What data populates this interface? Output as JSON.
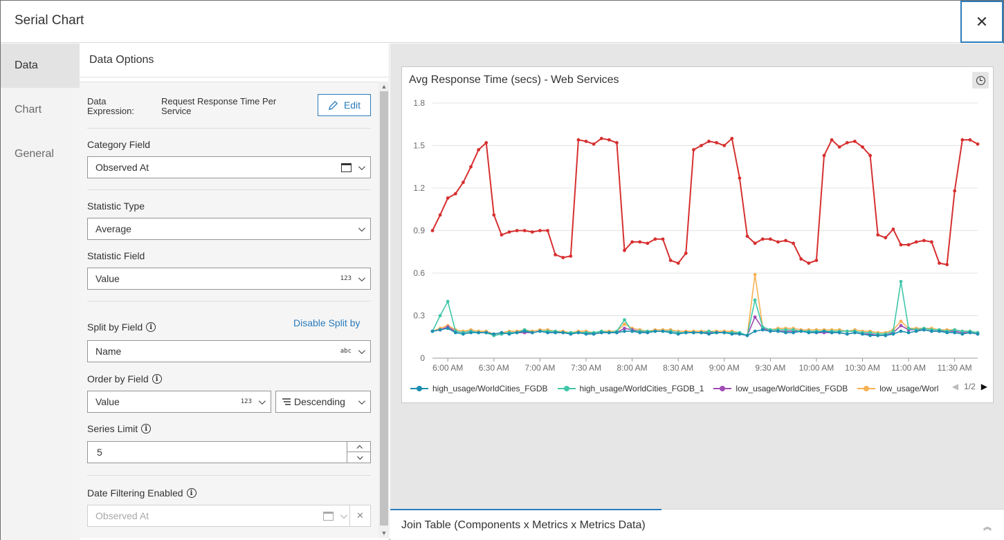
{
  "window": {
    "title": "Serial Chart",
    "close_glyph": "✕"
  },
  "sidetabs": [
    {
      "label": "Data"
    },
    {
      "label": "Chart"
    },
    {
      "label": "General"
    }
  ],
  "panel": {
    "header": "Data Options",
    "data_expression": {
      "label": "Data Expression:",
      "value": "Request Response Time Per Service",
      "edit_label": "Edit"
    },
    "category_field": {
      "label": "Category Field",
      "value": "Observed At"
    },
    "statistic_type": {
      "label": "Statistic Type",
      "value": "Average"
    },
    "statistic_field": {
      "label": "Statistic Field",
      "value": "Value",
      "type_badge": "123"
    },
    "split_by": {
      "label": "Split by Field",
      "disable_label": "Disable Split by",
      "value": "Name",
      "type_badge": "abc"
    },
    "order_by": {
      "label": "Order by Field",
      "value": "Value",
      "type_badge": "123",
      "direction": "Descending"
    },
    "series_limit": {
      "label": "Series Limit",
      "value": "5"
    },
    "date_filtering": {
      "label": "Date Filtering Enabled",
      "placeholder": "Observed At"
    }
  },
  "chart": {
    "title": "Avg Response Time (secs) - Web Services",
    "legend_page": "1/2",
    "legend": [
      {
        "name": "high_usage/WorldCities_FGDB",
        "color": "#1a8fb0"
      },
      {
        "name": "high_usage/WorldCities_FGDB_1",
        "color": "#3fc7a8"
      },
      {
        "name": "low_usage/WorldCities_FGDB",
        "color": "#a04bb5"
      },
      {
        "name": "low_usage/Worl",
        "color": "#f7b153"
      }
    ]
  },
  "chart_data": {
    "type": "line",
    "title": "Avg Response Time (secs) - Web Services",
    "ylim": [
      0,
      1.8
    ],
    "yticks": [
      "0",
      "0.3",
      "0.6",
      "0.9",
      "1.2",
      "1.5",
      "1.8"
    ],
    "xticks": [
      "6:00 AM",
      "6:30 AM",
      "7:00 AM",
      "7:30 AM",
      "8:00 AM",
      "8:30 AM",
      "9:00 AM",
      "9:30 AM",
      "10:00 AM",
      "10:30 AM",
      "11:00 AM",
      "11:30 AM"
    ],
    "grid": true,
    "legend_position": "bottom",
    "x_start_minutes": 350,
    "x_step_minutes": 5,
    "x_end_minutes": 705,
    "series": [
      {
        "name": "red",
        "color": "#d62f2f",
        "values": [
          0.9,
          1.01,
          1.13,
          1.16,
          1.24,
          1.35,
          1.47,
          1.52,
          1.01,
          0.87,
          0.89,
          0.9,
          0.9,
          0.89,
          0.9,
          0.9,
          0.73,
          0.71,
          0.72,
          1.54,
          1.53,
          1.51,
          1.55,
          1.54,
          1.52,
          0.76,
          0.82,
          0.82,
          0.81,
          0.84,
          0.84,
          0.69,
          0.67,
          0.74,
          1.47,
          1.5,
          1.53,
          1.52,
          1.5,
          1.55,
          1.27,
          0.86,
          0.81,
          0.84,
          0.84,
          0.82,
          0.83,
          0.81,
          0.7,
          0.67,
          0.69,
          1.43,
          1.54,
          1.49,
          1.52,
          1.53,
          1.49,
          1.43,
          0.87,
          0.85,
          0.91,
          0.8,
          0.8,
          0.82,
          0.83,
          0.82,
          0.67,
          0.66,
          1.18,
          1.54,
          1.54,
          1.51
        ]
      },
      {
        "name": "high_usage/WorldCities_FGDB",
        "color": "#1a8fb0",
        "values": [
          0.19,
          0.2,
          0.21,
          0.18,
          0.17,
          0.18,
          0.18,
          0.18,
          0.17,
          0.18,
          0.17,
          0.18,
          0.19,
          0.18,
          0.19,
          0.18,
          0.18,
          0.18,
          0.17,
          0.18,
          0.17,
          0.17,
          0.18,
          0.18,
          0.18,
          0.19,
          0.19,
          0.18,
          0.18,
          0.19,
          0.19,
          0.18,
          0.17,
          0.18,
          0.18,
          0.18,
          0.17,
          0.18,
          0.18,
          0.17,
          0.17,
          0.16,
          0.19,
          0.2,
          0.19,
          0.19,
          0.18,
          0.18,
          0.19,
          0.18,
          0.18,
          0.19,
          0.18,
          0.18,
          0.17,
          0.18,
          0.17,
          0.16,
          0.16,
          0.16,
          0.17,
          0.19,
          0.18,
          0.19,
          0.2,
          0.19,
          0.19,
          0.18,
          0.18,
          0.17,
          0.18,
          0.17
        ]
      },
      {
        "name": "high_usage/WorldCities_FGDB_1",
        "color": "#3fc7a8",
        "values": [
          0.19,
          0.3,
          0.4,
          0.19,
          0.18,
          0.19,
          0.18,
          0.18,
          0.16,
          0.17,
          0.18,
          0.18,
          0.2,
          0.18,
          0.19,
          0.19,
          0.19,
          0.18,
          0.18,
          0.18,
          0.18,
          0.18,
          0.19,
          0.18,
          0.19,
          0.27,
          0.19,
          0.19,
          0.19,
          0.19,
          0.19,
          0.19,
          0.18,
          0.18,
          0.18,
          0.18,
          0.19,
          0.18,
          0.18,
          0.18,
          0.18,
          0.16,
          0.41,
          0.22,
          0.2,
          0.2,
          0.2,
          0.2,
          0.19,
          0.19,
          0.19,
          0.19,
          0.19,
          0.19,
          0.19,
          0.19,
          0.18,
          0.18,
          0.17,
          0.17,
          0.19,
          0.54,
          0.21,
          0.2,
          0.21,
          0.2,
          0.2,
          0.19,
          0.2,
          0.19,
          0.19,
          0.18
        ]
      },
      {
        "name": "low_usage/WorldCities_FGDB",
        "color": "#a04bb5",
        "values": [
          0.19,
          0.2,
          0.22,
          0.19,
          0.18,
          0.19,
          0.18,
          0.18,
          0.16,
          0.17,
          0.18,
          0.18,
          0.18,
          0.18,
          0.19,
          0.18,
          0.18,
          0.18,
          0.17,
          0.18,
          0.18,
          0.17,
          0.18,
          0.18,
          0.18,
          0.21,
          0.2,
          0.19,
          0.18,
          0.19,
          0.19,
          0.19,
          0.18,
          0.18,
          0.18,
          0.18,
          0.18,
          0.18,
          0.18,
          0.18,
          0.17,
          0.16,
          0.29,
          0.21,
          0.19,
          0.19,
          0.19,
          0.19,
          0.19,
          0.19,
          0.18,
          0.18,
          0.18,
          0.18,
          0.17,
          0.18,
          0.17,
          0.17,
          0.16,
          0.16,
          0.18,
          0.23,
          0.2,
          0.2,
          0.2,
          0.19,
          0.19,
          0.19,
          0.19,
          0.18,
          0.18,
          0.17
        ]
      },
      {
        "name": "low_usage/Worl",
        "color": "#f7b153",
        "values": [
          0.19,
          0.21,
          0.23,
          0.2,
          0.19,
          0.2,
          0.19,
          0.19,
          0.17,
          0.18,
          0.19,
          0.19,
          0.2,
          0.19,
          0.2,
          0.2,
          0.19,
          0.19,
          0.18,
          0.19,
          0.19,
          0.18,
          0.19,
          0.19,
          0.19,
          0.24,
          0.21,
          0.2,
          0.19,
          0.2,
          0.2,
          0.2,
          0.19,
          0.19,
          0.19,
          0.19,
          0.19,
          0.19,
          0.19,
          0.19,
          0.18,
          0.16,
          0.59,
          0.22,
          0.2,
          0.21,
          0.21,
          0.21,
          0.2,
          0.2,
          0.2,
          0.2,
          0.2,
          0.2,
          0.19,
          0.2,
          0.19,
          0.19,
          0.18,
          0.18,
          0.2,
          0.26,
          0.21,
          0.21,
          0.21,
          0.21,
          0.2,
          0.2,
          0.2,
          0.19,
          0.19,
          0.18
        ]
      }
    ]
  },
  "bottom_tab": {
    "label": "Join Table (Components x Metrics x Metrics Data)",
    "collapse_glyph": "︽"
  }
}
